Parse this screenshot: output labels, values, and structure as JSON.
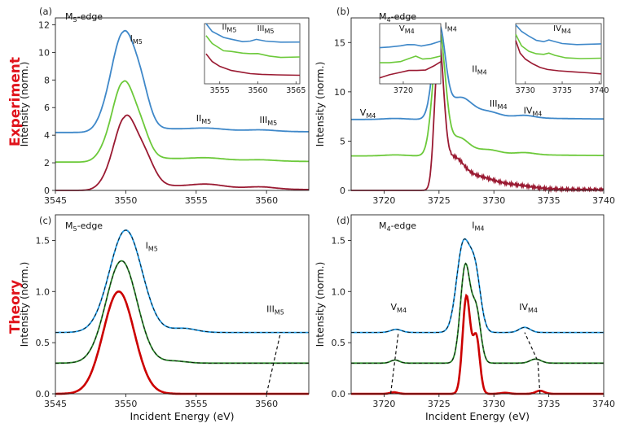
{
  "row_labels": {
    "experiment": "Experiment",
    "theory": "Theory"
  },
  "colors": {
    "blue": "#3f88c9",
    "green": "#6cc93a",
    "maroon": "#9a1a32",
    "theory_blue": "#1f9ae6",
    "theory_green": "#2b8a2b",
    "theory_red": "#cc0000"
  },
  "chart_data": [
    {
      "id": "a",
      "letter": "(a)",
      "edge_title": "M5-edge",
      "type": "line",
      "xlabel": "",
      "ylabel": "Intensity (norm.)",
      "xlim": [
        3545,
        3563
      ],
      "ylim": [
        0,
        12.5
      ],
      "xticks": [
        3545,
        3550,
        3555,
        3560
      ],
      "yticks": [
        0,
        2,
        4,
        6,
        8,
        10,
        12
      ],
      "series": [
        {
          "color": "blue",
          "baseline": 4.2,
          "peaks": [
            [
              3549.8,
              7.0,
              0.8
            ],
            [
              3551.1,
              2.3,
              0.6
            ],
            [
              3548.5,
              0.6,
              0.6
            ],
            [
              3555.8,
              0.15,
              1.2
            ],
            [
              3559.6,
              0.1,
              1.0
            ]
          ],
          "tail": 0.45
        },
        {
          "color": "green",
          "baseline": 2.05,
          "peaks": [
            [
              3549.8,
              5.6,
              0.75
            ],
            [
              3551.1,
              1.7,
              0.6
            ],
            [
              3548.5,
              0.5,
              0.6
            ],
            [
              3555.8,
              0.15,
              1.2
            ],
            [
              3559.6,
              0.08,
              1.0
            ]
          ],
          "tail": 0.45
        },
        {
          "color": "maroon",
          "baseline": 0.0,
          "peaks": [
            [
              3549.9,
              5.0,
              0.75
            ],
            [
              3551.3,
              2.0,
              0.7
            ],
            [
              3548.6,
              0.4,
              0.6
            ],
            [
              3555.8,
              0.25,
              1.2
            ],
            [
              3559.6,
              0.15,
              1.0
            ]
          ],
          "tail": 0.55
        }
      ],
      "annotations": [
        {
          "main": "I",
          "sub": "M5",
          "x": 3550.3,
          "y": 10.8
        },
        {
          "main": "II",
          "sub": "M5",
          "x": 3555.0,
          "y": 5.0
        },
        {
          "main": "III",
          "sub": "M5",
          "x": 3559.5,
          "y": 4.9
        }
      ],
      "inset": {
        "xlim": [
          3553,
          3565.5
        ],
        "ylim": [
          0,
          1
        ],
        "xticks": [
          3555,
          3560,
          3565
        ],
        "series": [
          {
            "color": "blue",
            "points": [
              [
                3553.2,
                1.0
              ],
              [
                3554.0,
                0.86
              ],
              [
                3555.5,
                0.76
              ],
              [
                3556.5,
                0.74
              ],
              [
                3558.0,
                0.71
              ],
              [
                3559.0,
                0.72
              ],
              [
                3559.8,
                0.74
              ],
              [
                3561.0,
                0.7
              ],
              [
                3563.0,
                0.68
              ],
              [
                3565.5,
                0.69
              ]
            ]
          },
          {
            "color": "green",
            "points": [
              [
                3553.2,
                0.8
              ],
              [
                3554.0,
                0.68
              ],
              [
                3555.5,
                0.56
              ],
              [
                3556.5,
                0.54
              ],
              [
                3558.0,
                0.5
              ],
              [
                3559.0,
                0.49
              ],
              [
                3560.0,
                0.5
              ],
              [
                3561.5,
                0.47
              ],
              [
                3563.0,
                0.45
              ],
              [
                3565.5,
                0.45
              ]
            ]
          },
          {
            "color": "maroon",
            "points": [
              [
                3553.2,
                0.5
              ],
              [
                3554.0,
                0.36
              ],
              [
                3555.0,
                0.28
              ],
              [
                3556.5,
                0.22
              ],
              [
                3558.0,
                0.2
              ],
              [
                3559.0,
                0.18
              ],
              [
                3560.5,
                0.16
              ],
              [
                3562.5,
                0.14
              ],
              [
                3565.5,
                0.13
              ]
            ]
          }
        ],
        "annotations": [
          {
            "main": "II",
            "sub": "M5",
            "x": 3555.3,
            "y": 0.9
          },
          {
            "main": "III",
            "sub": "M5",
            "x": 3559.9,
            "y": 0.88
          }
        ]
      }
    },
    {
      "id": "b",
      "letter": "(b)",
      "edge_title": "M4-edge",
      "type": "line",
      "xlabel": "",
      "ylabel": "Intensity (norm.)",
      "xlim": [
        3717,
        3740
      ],
      "ylim": [
        0,
        17.5
      ],
      "xticks": [
        3720,
        3725,
        3730,
        3735,
        3740
      ],
      "yticks": [
        0,
        5,
        10,
        15
      ],
      "series": [
        {
          "color": "blue",
          "baseline": 7.2,
          "peaks": [
            [
              3725.0,
              9.3,
              0.55
            ],
            [
              3727.0,
              1.8,
              1.0
            ],
            [
              3729.5,
              0.5,
              1.0
            ],
            [
              3732.8,
              0.25,
              0.9
            ],
            [
              3721.0,
              0.1,
              1.0
            ]
          ],
          "tail": 0.6
        },
        {
          "color": "green",
          "baseline": 3.5,
          "peaks": [
            [
              3725.0,
              12.4,
              0.55
            ],
            [
              3726.8,
              1.5,
              0.9
            ],
            [
              3729.5,
              0.4,
              1.0
            ],
            [
              3732.8,
              0.2,
              0.9
            ],
            [
              3721.0,
              0.1,
              1.0
            ]
          ],
          "tail": 0.5
        },
        {
          "color": "maroon",
          "baseline": 0.0,
          "peaks": [
            [
              3724.95,
              14.5,
              0.45
            ],
            [
              3726.3,
              2.5,
              0.9
            ],
            [
              3728.5,
              1.0,
              1.5
            ],
            [
              3732.0,
              0.3,
              1.5
            ]
          ],
          "tail": 0.7
        }
      ],
      "annotations": [
        {
          "main": "I",
          "sub": "M4",
          "x": 3725.5,
          "y": 16.4
        },
        {
          "main": "II",
          "sub": "M4",
          "x": 3728.0,
          "y": 12.0
        },
        {
          "main": "III",
          "sub": "M4",
          "x": 3729.6,
          "y": 8.5
        },
        {
          "main": "IV",
          "sub": "M4",
          "x": 3732.7,
          "y": 7.8
        },
        {
          "main": "V",
          "sub": "M4",
          "x": 3717.8,
          "y": 7.6
        }
      ],
      "inset_left": {
        "xlim": [
          3718.3,
          3722.7
        ],
        "ylim": [
          0,
          1
        ],
        "xticks": [
          3720
        ],
        "series": [
          {
            "color": "blue",
            "points": [
              [
                3718.3,
                0.6
              ],
              [
                3719.0,
                0.6
              ],
              [
                3719.8,
                0.62
              ],
              [
                3720.3,
                0.65
              ],
              [
                3720.8,
                0.66
              ],
              [
                3721.3,
                0.64
              ],
              [
                3722.0,
                0.66
              ],
              [
                3722.7,
                0.7
              ]
            ]
          },
          {
            "color": "green",
            "points": [
              [
                3718.3,
                0.35
              ],
              [
                3719.0,
                0.36
              ],
              [
                3719.8,
                0.38
              ],
              [
                3720.4,
                0.42
              ],
              [
                3720.9,
                0.45
              ],
              [
                3721.4,
                0.4
              ],
              [
                3722.0,
                0.42
              ],
              [
                3722.7,
                0.47
              ]
            ]
          },
          {
            "color": "maroon",
            "points": [
              [
                3718.3,
                0.1
              ],
              [
                3719.0,
                0.14
              ],
              [
                3719.8,
                0.18
              ],
              [
                3720.4,
                0.22
              ],
              [
                3721.0,
                0.23
              ],
              [
                3721.6,
                0.24
              ],
              [
                3722.2,
                0.3
              ],
              [
                3722.7,
                0.36
              ]
            ]
          }
        ],
        "annotations": [
          {
            "main": "V",
            "sub": "M4",
            "x": 3719.7,
            "y": 0.88
          }
        ]
      },
      "inset_right": {
        "xlim": [
          3728.7,
          3740.3
        ],
        "ylim": [
          0,
          1
        ],
        "xticks": [
          3730,
          3735,
          3740
        ],
        "series": [
          {
            "color": "blue",
            "points": [
              [
                3728.7,
                0.98
              ],
              [
                3729.5,
                0.86
              ],
              [
                3730.5,
                0.78
              ],
              [
                3731.5,
                0.72
              ],
              [
                3732.5,
                0.71
              ],
              [
                3733.2,
                0.74
              ],
              [
                3733.8,
                0.71
              ],
              [
                3735.0,
                0.66
              ],
              [
                3737.0,
                0.64
              ],
              [
                3740.3,
                0.66
              ]
            ]
          },
          {
            "color": "green",
            "points": [
              [
                3728.7,
                0.82
              ],
              [
                3729.5,
                0.64
              ],
              [
                3730.5,
                0.55
              ],
              [
                3731.5,
                0.5
              ],
              [
                3732.5,
                0.48
              ],
              [
                3733.2,
                0.5
              ],
              [
                3734.0,
                0.47
              ],
              [
                3735.5,
                0.44
              ],
              [
                3737.5,
                0.43
              ],
              [
                3740.3,
                0.43
              ]
            ]
          },
          {
            "color": "maroon",
            "points": [
              [
                3728.7,
                0.72
              ],
              [
                3729.3,
                0.5
              ],
              [
                3730.0,
                0.4
              ],
              [
                3731.0,
                0.33
              ],
              [
                3732.0,
                0.28
              ],
              [
                3733.0,
                0.25
              ],
              [
                3734.5,
                0.22
              ],
              [
                3736.5,
                0.19
              ],
              [
                3738.5,
                0.17
              ],
              [
                3740.3,
                0.16
              ]
            ]
          }
        ],
        "annotations": [
          {
            "main": "IV",
            "sub": "M4",
            "x": 3733.8,
            "y": 0.88
          }
        ]
      }
    },
    {
      "id": "c",
      "letter": "(c)",
      "edge_title": "M5-edge",
      "type": "line",
      "xlabel": "Incident Energy (eV)",
      "ylabel": "Intensity (norm.)",
      "xlim": [
        3545,
        3563
      ],
      "ylim": [
        0,
        1.75
      ],
      "xticks": [
        3545,
        3550,
        3555,
        3560
      ],
      "yticks": [
        0.0,
        0.5,
        1.0,
        1.5
      ],
      "series": [
        {
          "color": "theory_blue",
          "style": "dashed",
          "baseline": 0.6,
          "peaks": [
            [
              3550.0,
              1.0,
              1.15
            ],
            [
              3554.1,
              0.04,
              0.9
            ]
          ],
          "tail": 0
        },
        {
          "color": "theory_green",
          "style": "dashed",
          "baseline": 0.3,
          "peaks": [
            [
              3549.7,
              1.0,
              1.1
            ],
            [
              3553.5,
              0.02,
              0.8
            ]
          ],
          "tail": 0
        },
        {
          "color": "theory_red",
          "style": "solid",
          "baseline": 0.0,
          "peaks": [
            [
              3549.5,
              1.0,
              1.1
            ]
          ],
          "tail": 0
        }
      ],
      "guides": [
        [
          [
            3560.0,
            0.0
          ],
          [
            3561.0,
            0.6
          ]
        ]
      ],
      "annotations": [
        {
          "main": "I",
          "sub": "M5",
          "x": 3551.4,
          "y": 1.42
        },
        {
          "main": "III",
          "sub": "M5",
          "x": 3560.0,
          "y": 0.8
        }
      ]
    },
    {
      "id": "d",
      "letter": "(d)",
      "edge_title": "M4-edge",
      "type": "line",
      "xlabel": "Incident Energy (eV)",
      "ylabel": "Intensity (norm.)",
      "xlim": [
        3717,
        3740
      ],
      "ylim": [
        0,
        1.75
      ],
      "xticks": [
        3720,
        3725,
        3730,
        3735,
        3740
      ],
      "yticks": [
        0.0,
        0.5,
        1.0,
        1.5
      ],
      "series": [
        {
          "color": "theory_blue",
          "style": "dashed",
          "baseline": 0.6,
          "peaks": [
            [
              3727.2,
              0.85,
              0.6
            ],
            [
              3728.3,
              0.55,
              0.5
            ],
            [
              3721.1,
              0.03,
              0.5
            ],
            [
              3732.8,
              0.05,
              0.5
            ]
          ],
          "tail": 0
        },
        {
          "color": "theory_green",
          "style": "dashed",
          "baseline": 0.3,
          "peaks": [
            [
              3727.4,
              0.95,
              0.45
            ],
            [
              3728.4,
              0.5,
              0.4
            ],
            [
              3721.0,
              0.03,
              0.4
            ],
            [
              3733.8,
              0.04,
              0.5
            ]
          ],
          "tail": 0
        },
        {
          "color": "theory_red",
          "style": "solid",
          "baseline": 0.0,
          "peaks": [
            [
              3727.5,
              0.95,
              0.35
            ],
            [
              3728.4,
              0.55,
              0.32
            ],
            [
              3720.9,
              0.015,
              0.35
            ],
            [
              3731.0,
              0.01,
              0.4
            ],
            [
              3734.2,
              0.03,
              0.4
            ]
          ],
          "tail": 0
        }
      ],
      "guides": [
        [
          [
            3720.6,
            0.0
          ],
          [
            3721.3,
            0.6
          ]
        ],
        [
          [
            3734.2,
            0.0
          ],
          [
            3734.0,
            0.32
          ],
          [
            3732.8,
            0.6
          ]
        ]
      ],
      "annotations": [
        {
          "main": "I",
          "sub": "M4",
          "x": 3728.0,
          "y": 1.62
        },
        {
          "main": "V",
          "sub": "M4",
          "x": 3720.6,
          "y": 0.82
        },
        {
          "main": "IV",
          "sub": "M4",
          "x": 3732.3,
          "y": 0.82
        }
      ]
    }
  ]
}
